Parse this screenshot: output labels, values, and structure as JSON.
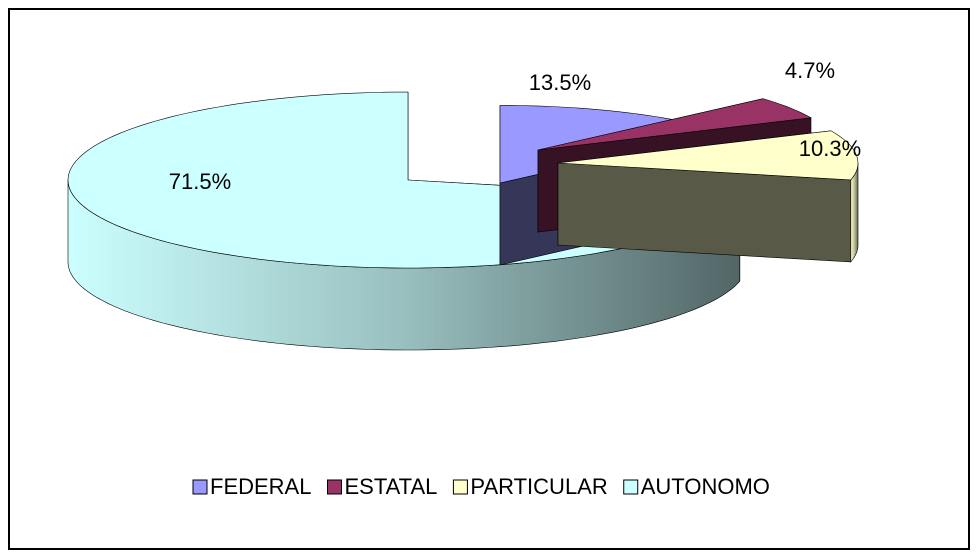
{
  "chart_data": {
    "type": "pie",
    "three_d": true,
    "categories": [
      "FEDERAL",
      "ESTATAL",
      "PARTICULAR",
      "AUTONOMO"
    ],
    "values": [
      13.5,
      4.7,
      10.3,
      71.5
    ],
    "value_labels": [
      "13.5%",
      "4.7%",
      "10.3%",
      "71.5%"
    ],
    "colors": [
      "#9999ff",
      "#993366",
      "#ffffcc",
      "#ccffff"
    ],
    "legend": "bottom"
  }
}
